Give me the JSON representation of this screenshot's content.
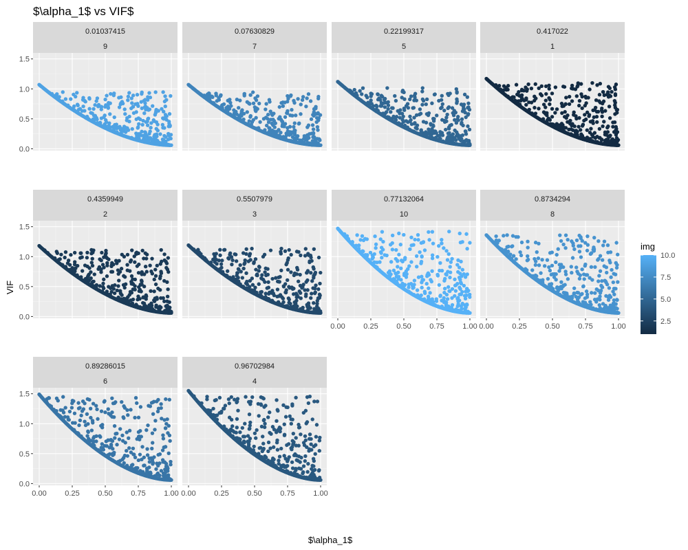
{
  "chart_data": {
    "type": "scatter",
    "title": "$\\alpha_1$ vs VIF$",
    "xlabel": "$\\alpha_1$",
    "ylabel": "VIF",
    "xlim": [
      0,
      1
    ],
    "ylim": [
      -0.03,
      1.6
    ],
    "x_ticks": [
      "0.00",
      "0.25",
      "0.50",
      "0.75",
      "1.00"
    ],
    "y_ticks": [
      "0.0",
      "0.5",
      "1.0",
      "1.5"
    ],
    "grid": true,
    "legend": {
      "title": "img",
      "position": "right",
      "labels": [
        "10.0",
        "7.5",
        "5.0",
        "2.5"
      ],
      "values": [
        10,
        7.5,
        5,
        2.5
      ],
      "range": [
        1,
        10
      ],
      "color_low": "#132B43",
      "color_high": "#56B1F7"
    },
    "panels": [
      {
        "strip1": "0.01037415",
        "strip2": "9",
        "img": 9,
        "curve_start": 1.03,
        "max_vif": 0.95
      },
      {
        "strip1": "0.07630829",
        "strip2": "7",
        "img": 7,
        "curve_start": 1.03,
        "max_vif": 0.95
      },
      {
        "strip1": "0.22199317",
        "strip2": "5",
        "img": 5,
        "curve_start": 1.08,
        "max_vif": 1.02
      },
      {
        "strip1": "0.417022",
        "strip2": "1",
        "img": 1,
        "curve_start": 1.13,
        "max_vif": 1.1
      },
      {
        "strip1": "0.4359949",
        "strip2": "2",
        "img": 2,
        "curve_start": 1.14,
        "max_vif": 1.12
      },
      {
        "strip1": "0.5507979",
        "strip2": "3",
        "img": 3,
        "curve_start": 1.15,
        "max_vif": 1.14
      },
      {
        "strip1": "0.77132064",
        "strip2": "10",
        "img": 10,
        "curve_start": 1.43,
        "max_vif": 1.42
      },
      {
        "strip1": "0.8734294",
        "strip2": "8",
        "img": 8,
        "curve_start": 1.32,
        "max_vif": 1.36
      },
      {
        "strip1": "0.89286015",
        "strip2": "6",
        "img": 6,
        "curve_start": 1.45,
        "max_vif": 1.45
      },
      {
        "strip1": "0.96702984",
        "strip2": "4",
        "img": 4,
        "curve_start": 1.51,
        "max_vif": 1.47
      }
    ]
  }
}
